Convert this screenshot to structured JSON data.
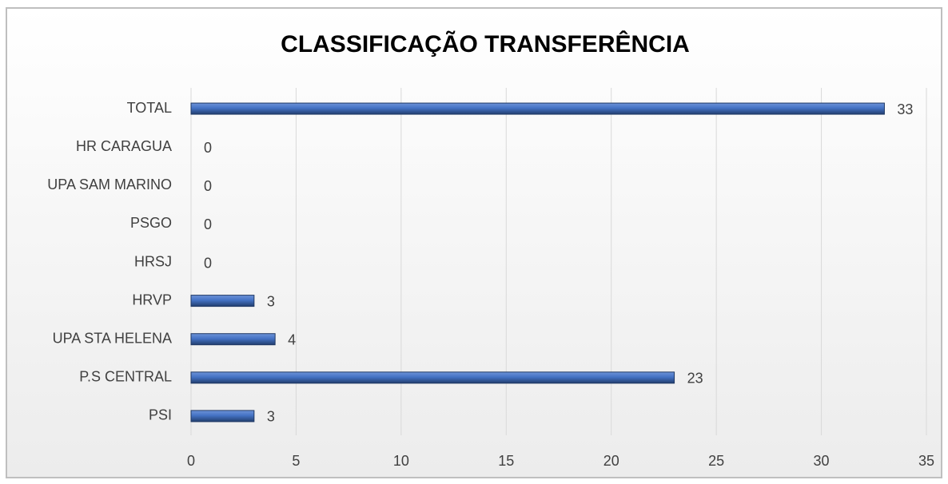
{
  "chart_data": {
    "type": "bar",
    "orientation": "horizontal",
    "title": "CLASSIFICAÇÃO TRANSFERÊNCIA",
    "categories": [
      "TOTAL",
      "HR CARAGUA",
      "UPA SAM MARINO",
      "PSGO",
      "HRSJ",
      "HRVP",
      "UPA STA HELENA",
      "P.S CENTRAL",
      "PSI"
    ],
    "values": [
      33,
      0,
      0,
      0,
      0,
      3,
      4,
      23,
      3
    ],
    "color": "#4472c4",
    "xlim": [
      0,
      35
    ],
    "xticks": [
      0,
      5,
      10,
      15,
      20,
      25,
      30,
      35
    ],
    "grid": true
  }
}
